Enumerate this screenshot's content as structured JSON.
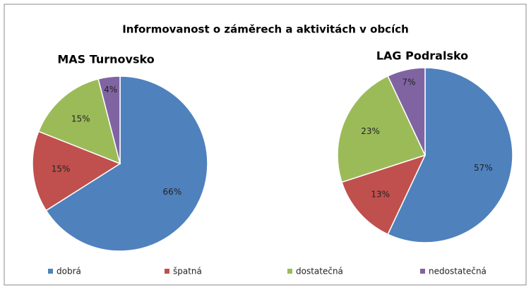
{
  "title": "Informovanost o záměrech a aktivitách v obcích",
  "chart_data": [
    {
      "type": "pie",
      "title": "MAS Turnovsko",
      "categories": [
        "dobrá",
        "špatná",
        "dostatečná",
        "nedostatečná"
      ],
      "values": [
        66,
        15,
        15,
        4
      ],
      "value_labels": [
        "66%",
        "15%",
        "15%",
        "4%"
      ],
      "colors": [
        "#4f81bd",
        "#c0504d",
        "#9bbb59",
        "#8064a2"
      ]
    },
    {
      "type": "pie",
      "title": "LAG Podralsko",
      "categories": [
        "dobrá",
        "špatná",
        "dostatečná",
        "nedostatečná"
      ],
      "values": [
        57,
        13,
        23,
        7
      ],
      "value_labels": [
        "57%",
        "13%",
        "23%",
        "7%"
      ],
      "colors": [
        "#4f81bd",
        "#c0504d",
        "#9bbb59",
        "#8064a2"
      ]
    }
  ]
}
